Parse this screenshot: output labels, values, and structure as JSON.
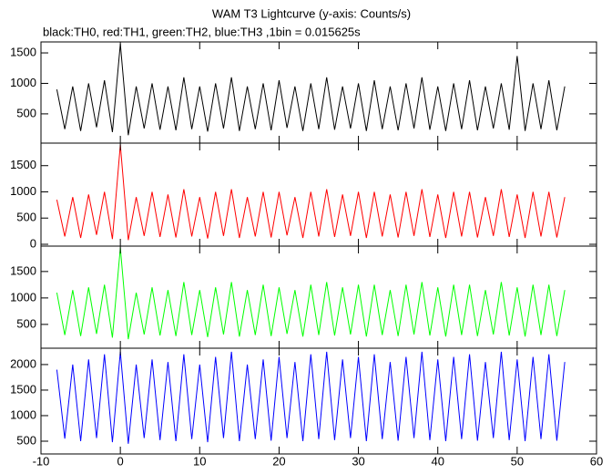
{
  "chart_data": {
    "type": "line",
    "title": "WAM T3 Lightcurve (y-axis: Counts/s)",
    "subtitle": "black:TH0, red:TH1, green:TH2, blue:TH3 ,1bin = 0.015625s",
    "x": [
      -8,
      -7,
      -6,
      -5,
      -4,
      -3,
      -2,
      -1,
      0,
      1,
      2,
      3,
      4,
      5,
      6,
      7,
      8,
      9,
      10,
      11,
      12,
      13,
      14,
      15,
      16,
      17,
      18,
      19,
      20,
      21,
      22,
      23,
      24,
      25,
      26,
      27,
      28,
      29,
      30,
      31,
      32,
      33,
      34,
      35,
      36,
      37,
      38,
      39,
      40,
      41,
      42,
      43,
      44,
      45,
      46,
      47,
      48,
      49,
      50,
      51,
      52,
      53,
      54,
      55,
      56
    ],
    "xlim": [
      -10,
      60
    ],
    "xticks": [
      -10,
      0,
      10,
      20,
      30,
      40,
      50,
      60
    ],
    "series": [
      {
        "color": "#000000",
        "ylim": [
          20,
          1680
        ],
        "yticks": [
          500,
          1000,
          1500
        ],
        "values": [
          900,
          250,
          950,
          220,
          1000,
          280,
          1050,
          200,
          1650,
          150,
          950,
          260,
          1000,
          240,
          950,
          230,
          1100,
          250,
          950,
          210,
          1000,
          260,
          1100,
          220,
          950,
          250,
          1000,
          230,
          1050,
          270,
          950,
          220,
          1000,
          250,
          1100,
          240,
          950,
          260,
          1000,
          220,
          1050,
          250,
          950,
          230,
          1000,
          260,
          1100,
          240,
          950,
          220,
          1000,
          250,
          1050,
          230,
          950,
          260,
          1000,
          240,
          1450,
          220,
          1000,
          250,
          1050,
          230,
          950
        ]
      },
      {
        "color": "#ff0000",
        "ylim": [
          -35,
          1930
        ],
        "yticks": [
          0,
          500,
          1000,
          1500
        ],
        "values": [
          850,
          150,
          900,
          120,
          950,
          180,
          1000,
          100,
          1900,
          80,
          900,
          160,
          1000,
          140,
          950,
          130,
          1050,
          150,
          900,
          110,
          1000,
          160,
          1050,
          120,
          900,
          150,
          1000,
          130,
          1000,
          170,
          900,
          120,
          1000,
          150,
          1050,
          140,
          950,
          160,
          1000,
          120,
          1000,
          150,
          950,
          130,
          1000,
          160,
          1050,
          140,
          950,
          120,
          1000,
          150,
          1000,
          130,
          900,
          160,
          1050,
          140,
          950,
          120,
          1000,
          150,
          1000,
          130,
          900
        ]
      },
      {
        "color": "#00ff00",
        "ylim": [
          50,
          1980
        ],
        "yticks": [
          500,
          1000,
          1500
        ],
        "values": [
          1100,
          300,
          1150,
          280,
          1200,
          320,
          1250,
          250,
          1950,
          220,
          1100,
          310,
          1200,
          290,
          1150,
          280,
          1300,
          300,
          1150,
          260,
          1200,
          310,
          1300,
          270,
          1150,
          300,
          1250,
          280,
          1200,
          320,
          1150,
          270,
          1250,
          300,
          1300,
          290,
          1200,
          310,
          1250,
          270,
          1250,
          300,
          1150,
          280,
          1250,
          310,
          1300,
          290,
          1200,
          270,
          1250,
          300,
          1250,
          280,
          1150,
          310,
          1300,
          290,
          1200,
          270,
          1250,
          300,
          1250,
          280,
          1150
        ]
      },
      {
        "color": "#0000ff",
        "ylim": [
          250,
          2320
        ],
        "yticks": [
          500,
          1000,
          1500,
          2000
        ],
        "values": [
          1900,
          550,
          2000,
          500,
          2100,
          560,
          2200,
          480,
          2250,
          450,
          2000,
          560,
          2100,
          520,
          2050,
          500,
          2200,
          540,
          2000,
          480,
          2150,
          560,
          2250,
          500,
          2000,
          540,
          2100,
          510,
          2150,
          560,
          2050,
          500,
          2200,
          540,
          2250,
          520,
          2100,
          560,
          2150,
          500,
          2200,
          540,
          2050,
          510,
          2150,
          560,
          2250,
          520,
          2100,
          500,
          2150,
          540,
          2200,
          510,
          2050,
          560,
          2250,
          520,
          2100,
          500,
          2150,
          540,
          2200,
          510,
          2050
        ]
      }
    ]
  }
}
